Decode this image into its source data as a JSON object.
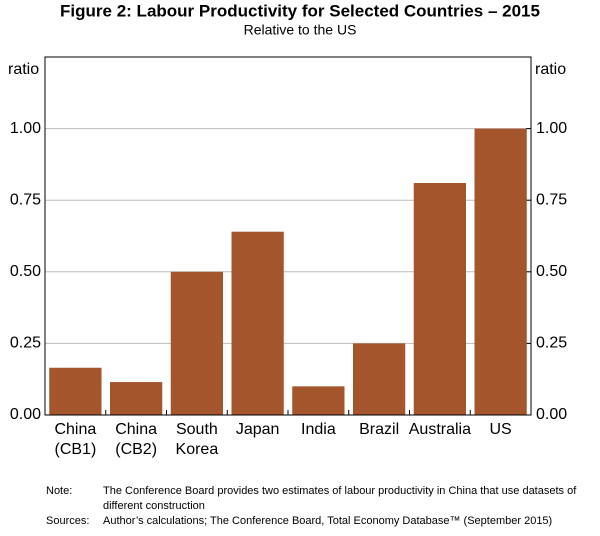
{
  "chart_data": {
    "type": "bar",
    "title": "Figure 2: Labour Productivity for Selected Countries – 2015",
    "subtitle": "Relative to the US",
    "y_label": "ratio",
    "y2_label": "ratio",
    "categories": [
      "China\n(CB1)",
      "China\n(CB2)",
      "South\nKorea",
      "Japan",
      "India",
      "Brazil",
      "Australia",
      "US"
    ],
    "values": [
      0.165,
      0.115,
      0.5,
      0.64,
      0.1,
      0.25,
      0.81,
      1.0
    ],
    "color": "#a5552b",
    "ylim": [
      0,
      1.25
    ],
    "yticks": [
      {
        "value": 0,
        "label": "0.00"
      },
      {
        "value": 0.25,
        "label": "0.25"
      },
      {
        "value": 0.5,
        "label": "0.50"
      },
      {
        "value": 0.75,
        "label": "0.75"
      },
      {
        "value": 1,
        "label": "1.00"
      }
    ],
    "y2lim": [
      0,
      1.25
    ],
    "y2ticks": [
      {
        "value": 0,
        "label": "0.00"
      },
      {
        "value": 0.25,
        "label": "0.25"
      },
      {
        "value": 0.5,
        "label": "0.50"
      },
      {
        "value": 0.75,
        "label": "0.75"
      },
      {
        "value": 1,
        "label": "1.00"
      }
    ],
    "grid": true,
    "notes": [
      {
        "label": "Note:",
        "text": "The Conference Board provides two estimates of labour productivity in China that use datasets of different construction"
      },
      {
        "label": "Sources:",
        "text": "Author’s calculations; The Conference Board, Total Economy Database™ (September 2015)"
      }
    ]
  }
}
